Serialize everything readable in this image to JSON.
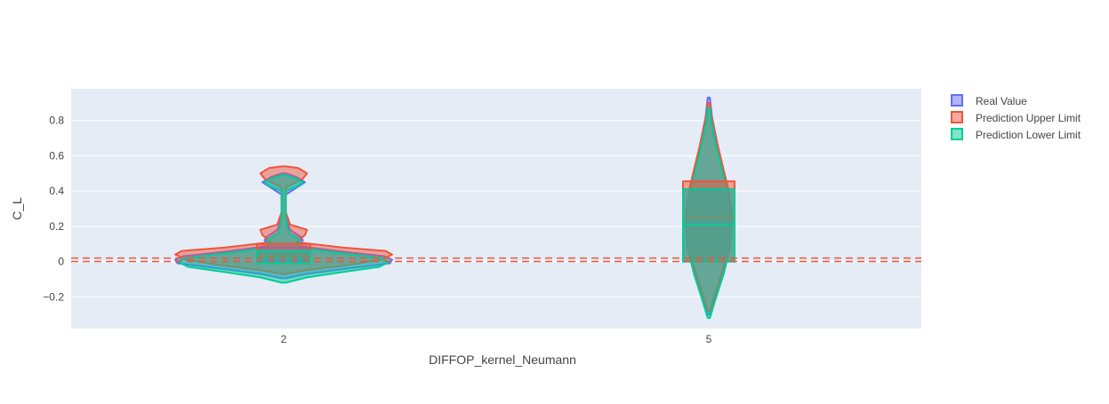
{
  "chart_data": {
    "type": "violin",
    "title": "",
    "xlabel": "DIFFOP_kernel_Neumann",
    "ylabel": "C_L",
    "categories": [
      "2",
      "5"
    ],
    "ylim": [
      -0.38,
      0.98
    ],
    "yticks": [
      -0.2,
      0,
      0.2,
      0.4,
      0.6,
      0.8
    ],
    "ytick_labels": [
      "−0.2",
      "0",
      "0.2",
      "0.4",
      "0.6",
      "0.8"
    ],
    "grid": true,
    "legend_position": "top-right",
    "reference_lines": [
      {
        "y": 0.0,
        "style": "dashed",
        "color": "#ef553b"
      },
      {
        "y": 0.02,
        "style": "dashed",
        "color": "#ef553b"
      }
    ],
    "series": [
      {
        "name": "Real Value",
        "color": "#636efa",
        "fill": "rgba(99,110,250,0.5)",
        "groups": [
          {
            "category": "2",
            "profile": [
              [
                -0.095,
                0.02
              ],
              [
                -0.07,
                0.22
              ],
              [
                -0.04,
                0.6
              ],
              [
                -0.01,
                1.0
              ],
              [
                0.01,
                1.02
              ],
              [
                0.03,
                0.95
              ],
              [
                0.06,
                0.5
              ],
              [
                0.09,
                0.12
              ],
              [
                0.12,
                0.18
              ],
              [
                0.14,
                0.16
              ],
              [
                0.18,
                0.06
              ],
              [
                0.25,
                0.02
              ],
              [
                0.32,
                0.02
              ],
              [
                0.38,
                0.02
              ],
              [
                0.43,
                0.15
              ],
              [
                0.45,
                0.2
              ],
              [
                0.48,
                0.12
              ],
              [
                0.5,
                0.02
              ]
            ],
            "box": [
              0.005,
              0.08
            ],
            "median": 0.03
          },
          {
            "category": "5",
            "profile": [
              [
                -0.3,
                0.01
              ],
              [
                -0.2,
                0.06
              ],
              [
                -0.05,
                0.14
              ],
              [
                0.1,
                0.2
              ],
              [
                0.25,
                0.22
              ],
              [
                0.4,
                0.18
              ],
              [
                0.55,
                0.12
              ],
              [
                0.7,
                0.07
              ],
              [
                0.82,
                0.03
              ],
              [
                0.93,
                0.01
              ]
            ],
            "box": [
              0.0,
              0.41
            ],
            "median": 0.22
          }
        ]
      },
      {
        "name": "Prediction Upper Limit",
        "color": "#ef553b",
        "fill": "rgba(239,85,59,0.5)",
        "groups": [
          {
            "category": "2",
            "profile": [
              [
                -0.07,
                0.02
              ],
              [
                -0.05,
                0.2
              ],
              [
                -0.02,
                0.6
              ],
              [
                0.01,
                0.92
              ],
              [
                0.04,
                1.02
              ],
              [
                0.06,
                0.96
              ],
              [
                0.08,
                0.55
              ],
              [
                0.11,
                0.12
              ],
              [
                0.15,
                0.2
              ],
              [
                0.18,
                0.22
              ],
              [
                0.21,
                0.06
              ],
              [
                0.28,
                0.02
              ],
              [
                0.35,
                0.02
              ],
              [
                0.42,
                0.02
              ],
              [
                0.47,
                0.18
              ],
              [
                0.5,
                0.22
              ],
              [
                0.53,
                0.14
              ],
              [
                0.54,
                0.02
              ]
            ],
            "box": [
              0.03,
              0.1
            ],
            "median": 0.06
          },
          {
            "category": "5",
            "profile": [
              [
                -0.28,
                0.01
              ],
              [
                -0.18,
                0.06
              ],
              [
                -0.03,
                0.14
              ],
              [
                0.12,
                0.2
              ],
              [
                0.27,
                0.22
              ],
              [
                0.42,
                0.18
              ],
              [
                0.57,
                0.12
              ],
              [
                0.72,
                0.06
              ],
              [
                0.84,
                0.02
              ],
              [
                0.9,
                0.01
              ]
            ],
            "box": [
              0.0,
              0.455
            ],
            "median": 0.25
          }
        ]
      },
      {
        "name": "Prediction Lower Limit",
        "color": "#00cc96",
        "fill": "rgba(0,204,150,0.5)",
        "groups": [
          {
            "category": "2",
            "profile": [
              [
                -0.12,
                0.02
              ],
              [
                -0.09,
                0.22
              ],
              [
                -0.06,
                0.55
              ],
              [
                -0.03,
                0.9
              ],
              [
                0.0,
                1.0
              ],
              [
                0.02,
                0.92
              ],
              [
                0.05,
                0.5
              ],
              [
                0.08,
                0.12
              ],
              [
                0.11,
                0.15
              ],
              [
                0.13,
                0.14
              ],
              [
                0.16,
                0.05
              ],
              [
                0.24,
                0.02
              ],
              [
                0.32,
                0.02
              ],
              [
                0.4,
                0.02
              ],
              [
                0.43,
                0.14
              ],
              [
                0.45,
                0.18
              ],
              [
                0.47,
                0.12
              ],
              [
                0.49,
                0.02
              ]
            ],
            "box": [
              -0.01,
              0.06
            ],
            "median": 0.02
          },
          {
            "category": "5",
            "profile": [
              [
                -0.32,
                0.01
              ],
              [
                -0.22,
                0.06
              ],
              [
                -0.07,
                0.14
              ],
              [
                0.08,
                0.2
              ],
              [
                0.23,
                0.22
              ],
              [
                0.38,
                0.18
              ],
              [
                0.53,
                0.12
              ],
              [
                0.68,
                0.06
              ],
              [
                0.8,
                0.02
              ],
              [
                0.87,
                0.01
              ]
            ],
            "box": [
              0.0,
              0.41
            ],
            "median": 0.21
          }
        ]
      }
    ]
  }
}
